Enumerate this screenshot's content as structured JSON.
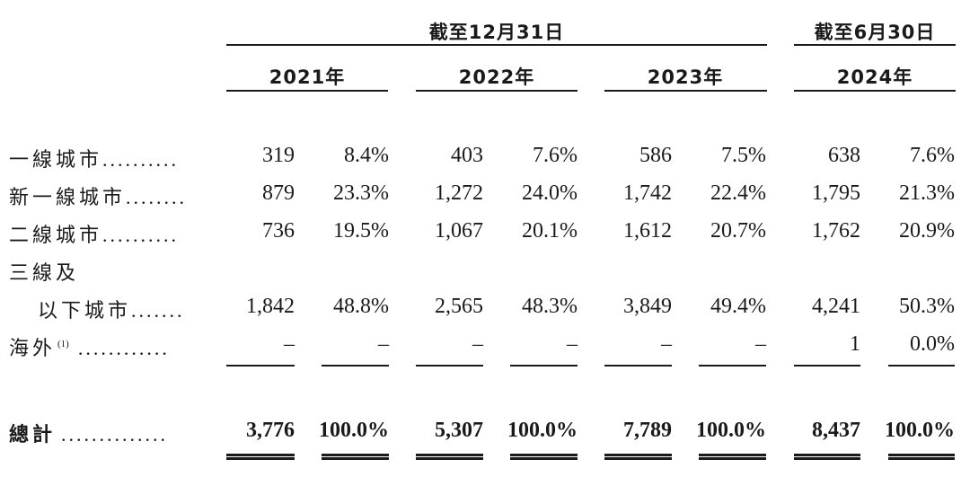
{
  "header": {
    "group1": "截至12月31日",
    "group2": "截至6月30日",
    "years": [
      "2021年",
      "2022年",
      "2023年",
      "2024年"
    ]
  },
  "rows": [
    {
      "label": "一線城市",
      "dots": "..........",
      "values": [
        "319",
        "8.4%",
        "403",
        "7.6%",
        "586",
        "7.5%",
        "638",
        "7.6%"
      ]
    },
    {
      "label": "新一線城市",
      "dots": "........",
      "values": [
        "879",
        "23.3%",
        "1,272",
        "24.0%",
        "1,742",
        "22.4%",
        "1,795",
        "21.3%"
      ]
    },
    {
      "label": "二線城市",
      "dots": "..........",
      "values": [
        "736",
        "19.5%",
        "1,067",
        "20.1%",
        "1,612",
        "20.7%",
        "1,762",
        "20.9%"
      ]
    },
    {
      "label": "三線及",
      "label2": "以下城市",
      "dots": ".......",
      "values": [
        "1,842",
        "48.8%",
        "2,565",
        "48.3%",
        "3,849",
        "49.4%",
        "4,241",
        "50.3%"
      ]
    },
    {
      "label": "海外",
      "note": "(1)",
      "dots": "............",
      "values": [
        "–",
        "–",
        "–",
        "–",
        "–",
        "–",
        "1",
        "0.0%"
      ]
    }
  ],
  "total": {
    "label": "總計",
    "dots": "..............",
    "values": [
      "3,776",
      "100.0%",
      "5,307",
      "100.0%",
      "7,789",
      "100.0%",
      "8,437",
      "100.0%"
    ]
  }
}
